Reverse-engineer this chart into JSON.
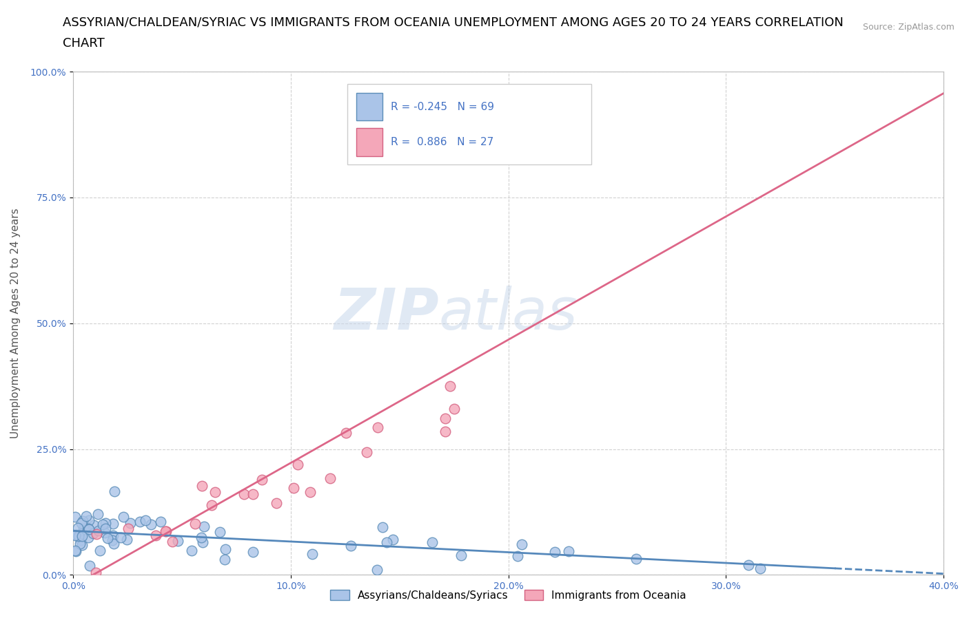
{
  "title_line1": "ASSYRIAN/CHALDEAN/SYRIAC VS IMMIGRANTS FROM OCEANIA UNEMPLOYMENT AMONG AGES 20 TO 24 YEARS CORRELATION",
  "title_line2": "CHART",
  "source": "Source: ZipAtlas.com",
  "watermark_zip": "ZIP",
  "watermark_atlas": "atlas",
  "ylabel": "Unemployment Among Ages 20 to 24 years",
  "xlim": [
    0.0,
    0.4
  ],
  "ylim": [
    0.0,
    1.0
  ],
  "xtick_vals": [
    0.0,
    0.1,
    0.2,
    0.3,
    0.4
  ],
  "xtick_labels": [
    "0.0%",
    "10.0%",
    "20.0%",
    "30.0%",
    "40.0%"
  ],
  "ytick_vals": [
    0.0,
    0.25,
    0.5,
    0.75,
    1.0
  ],
  "ytick_labels": [
    "0.0%",
    "25.0%",
    "50.0%",
    "75.0%",
    "100.0%"
  ],
  "series1_color": "#aac4e8",
  "series1_edge": "#5b8db8",
  "series2_color": "#f4a7b9",
  "series2_edge": "#d46080",
  "trendline1_color": "#5588bb",
  "trendline2_color": "#dd6688",
  "R1": -0.245,
  "N1": 69,
  "R2": 0.886,
  "N2": 27,
  "legend_label1": "Assyrians/Chaldeans/Syriacs",
  "legend_label2": "Immigrants from Oceania",
  "background_color": "#ffffff",
  "grid_color": "#cccccc",
  "title_fontsize": 13,
  "axis_label_fontsize": 11,
  "tick_fontsize": 10,
  "tick_color": "#4472c4",
  "legend_fontsize": 11
}
